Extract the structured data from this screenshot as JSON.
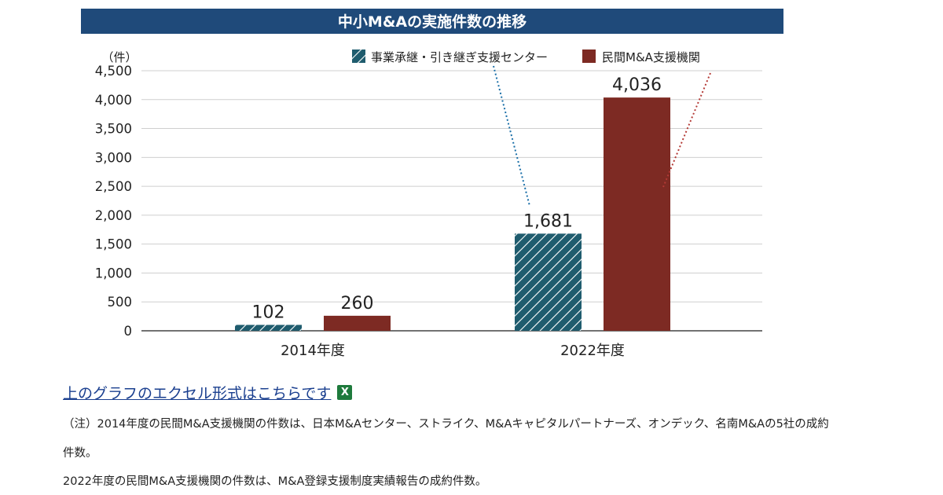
{
  "chart_data": {
    "type": "bar",
    "title": "中小M&Aの実施件数の推移",
    "ylabel": "（件）",
    "ylim": [
      0,
      4500
    ],
    "yticks": [
      "4,500",
      "4,000",
      "3,500",
      "3,000",
      "2,500",
      "2,000",
      "1,500",
      "1,000",
      "500",
      "0"
    ],
    "yticks_values": [
      4500,
      4000,
      3500,
      3000,
      2500,
      2000,
      1500,
      1000,
      500,
      0
    ],
    "categories": [
      "2014年度",
      "2022年度"
    ],
    "series": [
      {
        "name": "事業承継・引き継ぎ支援センター",
        "values": [
          102,
          1681
        ],
        "labels": [
          "102",
          "1,681"
        ],
        "color": "#1f5c6e",
        "pattern": "hatched"
      },
      {
        "name": "民間M&A支援機関",
        "values": [
          260,
          4036
        ],
        "labels": [
          "260",
          "4,036"
        ],
        "color": "#7d2a23",
        "pattern": "solid"
      }
    ],
    "legend_position": "top-right",
    "grid": true,
    "title_bg_color": "#1f4a7a"
  },
  "links": {
    "excel_label": "上のグラフのエクセル形式はこちらです",
    "excel_icon": "X"
  },
  "notes": {
    "line1": "（注）2014年度の民間M&A支援機関の件数は、日本M&Aセンター、ストライク、M&Aキャピタルパートナーズ、オンデック、名南M&Aの5社の成約",
    "line2": "件数。",
    "line3": "2022年度の民間M&A支援機関の件数は、M&A登録支援制度実績報告の成約件数。"
  }
}
